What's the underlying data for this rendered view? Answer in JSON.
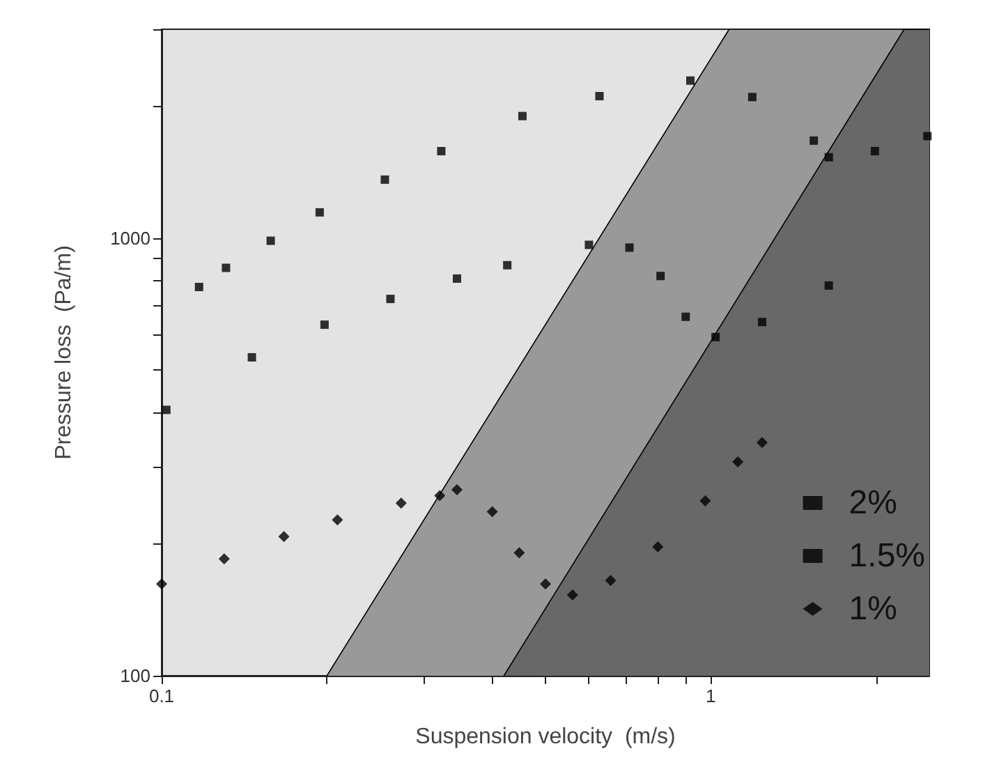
{
  "chart_data": {
    "type": "scatter",
    "xlabel": "Suspension velocity  (m/s)",
    "ylabel": "Pressure loss  (Pa/m)",
    "log": "xy",
    "xlim": [
      0.1,
      2.5
    ],
    "ylim": [
      100,
      3000
    ],
    "xticks": [
      0.1,
      {
        "value": 0.2,
        "label": null
      },
      {
        "value": 0.3,
        "label": null
      },
      {
        "value": 0.4,
        "label": null
      },
      {
        "value": 0.5,
        "label": null
      },
      {
        "value": 0.6,
        "label": null
      },
      {
        "value": 0.7,
        "label": null
      },
      {
        "value": 0.8,
        "label": null
      },
      {
        "value": 0.9,
        "label": null
      },
      1,
      {
        "value": 2,
        "label": null
      }
    ],
    "yticks": [
      100,
      {
        "value": 200,
        "label": null
      },
      {
        "value": 300,
        "label": null
      },
      {
        "value": 400,
        "label": null
      },
      {
        "value": 500,
        "label": null
      },
      {
        "value": 600,
        "label": null
      },
      {
        "value": 700,
        "label": null
      },
      {
        "value": 800,
        "label": null
      },
      {
        "value": 900,
        "label": null
      },
      1000,
      {
        "value": 2000,
        "label": null
      },
      {
        "value": 3000,
        "label": null
      }
    ],
    "grid": false,
    "legend": "bottom right",
    "series": [
      {
        "type": "area",
        "color": "#999999",
        "x": [
          0.2,
          1.08,
          2.5
        ],
        "values": [
          100,
          3000,
          3000
        ]
      },
      {
        "type": "area",
        "color": "#686868",
        "x": [
          0.42,
          2.25,
          2.5
        ],
        "values": [
          100,
          3000,
          3000
        ]
      },
      {
        "name": "2%",
        "color": "#000000",
        "marker": "square",
        "x": [
          0.117,
          0.131,
          0.158,
          0.194,
          0.255,
          0.323,
          0.454,
          0.627,
          0.918,
          1.19,
          1.54,
          1.64,
          1.99,
          2.48
        ],
        "values": [
          773,
          855,
          986,
          1145,
          1360,
          1580,
          1900,
          2110,
          2290,
          2100,
          1670,
          1530,
          1580,
          1710
        ]
      },
      {
        "name": "1.5%",
        "color": "#000000",
        "marker": "square",
        "x": [
          0.102,
          0.146,
          0.198,
          0.261,
          0.345,
          0.426,
          0.6,
          0.711,
          0.81,
          0.9,
          1.02,
          1.24,
          1.64
        ],
        "values": [
          405,
          534,
          634,
          726,
          808,
          867,
          965,
          951,
          819,
          661,
          594,
          643,
          779
        ]
      },
      {
        "name": "1%",
        "color": "#000000",
        "marker": "diamond",
        "x": [
          0.1,
          0.13,
          0.167,
          0.209,
          0.273,
          0.321,
          0.345,
          0.4,
          0.448,
          0.5,
          0.56,
          0.657,
          0.801,
          0.977,
          1.12,
          1.24
        ],
        "values": [
          162,
          185,
          208,
          227,
          248,
          258,
          266,
          237,
          191,
          162,
          153,
          165,
          197,
          251,
          308,
          341
        ]
      }
    ]
  }
}
